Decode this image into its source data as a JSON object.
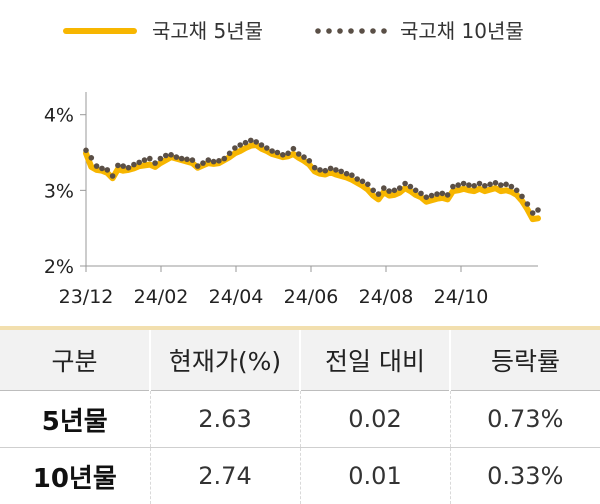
{
  "chart_data": {
    "type": "line",
    "title": "",
    "xlabel": "",
    "ylabel": "",
    "ylim": [
      2,
      4.3
    ],
    "y_ticks": [
      "2%",
      "3%",
      "4%"
    ],
    "x_tick_labels": [
      "23/12",
      "24/02",
      "24/04",
      "24/06",
      "24/08",
      "24/10"
    ],
    "grid": false,
    "legend_position": "top",
    "series": [
      {
        "name": "국고채 5년물",
        "style": "solid",
        "color": "#f7b600",
        "values": [
          3.49,
          3.31,
          3.27,
          3.26,
          3.23,
          3.16,
          3.28,
          3.26,
          3.27,
          3.29,
          3.32,
          3.33,
          3.34,
          3.31,
          3.36,
          3.4,
          3.44,
          3.42,
          3.4,
          3.38,
          3.36,
          3.3,
          3.33,
          3.36,
          3.35,
          3.36,
          3.4,
          3.44,
          3.49,
          3.52,
          3.56,
          3.59,
          3.6,
          3.55,
          3.52,
          3.48,
          3.46,
          3.44,
          3.45,
          3.48,
          3.43,
          3.39,
          3.34,
          3.25,
          3.22,
          3.21,
          3.24,
          3.21,
          3.19,
          3.17,
          3.14,
          3.1,
          3.06,
          3.01,
          2.93,
          2.88,
          2.98,
          2.93,
          2.94,
          2.97,
          3.03,
          2.99,
          2.94,
          2.91,
          2.85,
          2.87,
          2.89,
          2.9,
          2.88,
          2.99,
          3.0,
          3.02,
          3.0,
          2.99,
          3.02,
          2.99,
          3.01,
          3.03,
          2.99,
          3.0,
          2.98,
          2.94,
          2.86,
          2.75,
          2.62,
          2.63
        ]
      },
      {
        "name": "국고채 10년물",
        "style": "dotted",
        "color": "#5a4f46",
        "values": [
          3.53,
          3.43,
          3.32,
          3.29,
          3.27,
          3.19,
          3.33,
          3.32,
          3.3,
          3.34,
          3.37,
          3.4,
          3.42,
          3.36,
          3.42,
          3.46,
          3.47,
          3.44,
          3.42,
          3.41,
          3.4,
          3.32,
          3.36,
          3.4,
          3.38,
          3.39,
          3.42,
          3.49,
          3.56,
          3.6,
          3.63,
          3.66,
          3.64,
          3.6,
          3.56,
          3.52,
          3.5,
          3.47,
          3.49,
          3.55,
          3.48,
          3.44,
          3.39,
          3.3,
          3.27,
          3.26,
          3.29,
          3.27,
          3.25,
          3.22,
          3.2,
          3.15,
          3.12,
          3.08,
          3.0,
          2.95,
          3.03,
          2.99,
          3.0,
          3.03,
          3.09,
          3.05,
          3.0,
          2.96,
          2.91,
          2.93,
          2.95,
          2.96,
          2.94,
          3.05,
          3.07,
          3.09,
          3.07,
          3.06,
          3.09,
          3.06,
          3.08,
          3.1,
          3.07,
          3.08,
          3.05,
          3.0,
          2.92,
          2.82,
          2.7,
          2.74
        ]
      }
    ]
  },
  "table": {
    "headers": [
      "구분",
      "현재가(%)",
      "전일 대비",
      "등락률"
    ],
    "rows": [
      [
        "5년물",
        "2.63",
        "0.02",
        "0.73%"
      ],
      [
        "10년물",
        "2.74",
        "0.01",
        "0.33%"
      ]
    ]
  }
}
